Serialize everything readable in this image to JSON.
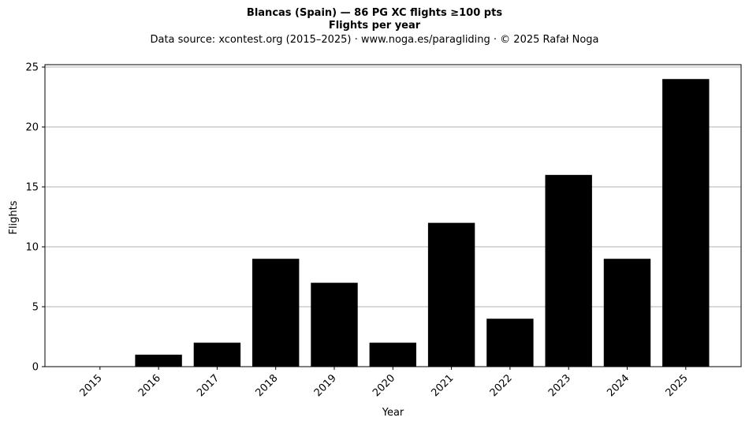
{
  "chart_data": {
    "type": "bar",
    "title": "Blancas (Spain)  —  86 PG XC flights ≥100 pts",
    "subtitle": "Flights per year",
    "source_note": "Data source: xcontest.org (2015–2025)  ·  www.noga.es/paragliding  ·  © 2025 Rafał Noga",
    "xlabel": "Year",
    "ylabel": "Flights",
    "categories": [
      "2015",
      "2016",
      "2017",
      "2018",
      "2019",
      "2020",
      "2021",
      "2022",
      "2023",
      "2024",
      "2025"
    ],
    "values": [
      0,
      1,
      2,
      9,
      7,
      2,
      12,
      4,
      16,
      9,
      24
    ],
    "ylim": [
      0,
      25.2
    ],
    "yticks": [
      0,
      5,
      10,
      15,
      20,
      25
    ],
    "grid": "horizontal",
    "bar_color": "#000000",
    "grid_color": "#b0b0b0"
  }
}
